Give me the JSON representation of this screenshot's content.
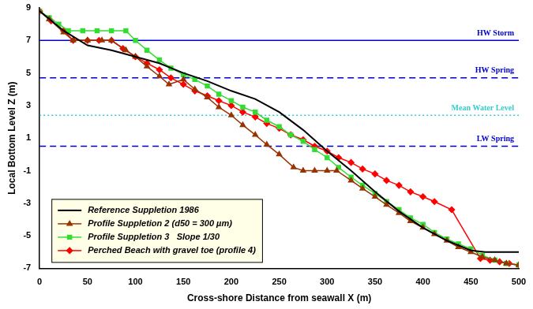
{
  "chart_data": {
    "type": "line",
    "x_label": "Cross-shore Distance from seawall X (m)",
    "y_label": "Local Bottom Level Z (m)",
    "xlim": [
      0,
      500
    ],
    "xticks": [
      0,
      50,
      100,
      150,
      200,
      250,
      300,
      350,
      400,
      450,
      500
    ],
    "ylim": [
      -7,
      9
    ],
    "yticks": [
      -7,
      -5,
      -3,
      -1,
      1,
      3,
      5,
      7,
      9
    ],
    "grid": false,
    "legend": "lower left",
    "annotations": [
      {
        "label": "HW Storm",
        "y": 7,
        "color": "#0000cc",
        "line_style": "solid"
      },
      {
        "label": "HW Spring",
        "y": 4.7,
        "color": "#0000cc",
        "line_style": "dashed"
      },
      {
        "label": "Mean Water Level",
        "y": 2.4,
        "color": "#33cccc",
        "line_style": "dotted"
      },
      {
        "label": "LW Spring",
        "y": 0.5,
        "color": "#0000cc",
        "line_style": "dashed"
      }
    ],
    "series": [
      {
        "name": "Reference Suppletion 1986",
        "color": "#000000",
        "marker": "none",
        "line_style": "solid",
        "x": [
          0,
          25,
          50,
          75,
          100,
          125,
          150,
          175,
          200,
          225,
          250,
          275,
          300,
          325,
          350,
          375,
          400,
          425,
          450,
          465,
          475,
          500
        ],
        "values": [
          8.8,
          7.6,
          6.7,
          6.4,
          6.0,
          5.6,
          5.0,
          4.5,
          3.9,
          3.4,
          2.6,
          1.5,
          0.2,
          -1.0,
          -2.3,
          -3.5,
          -4.5,
          -5.3,
          -5.9,
          -6.0,
          -6.0,
          -6.0
        ]
      },
      {
        "name": "Profile Suppletion 2 (d50 = 300 µm)",
        "color": "#993300",
        "marker": "triangle",
        "line_style": "solid",
        "x": [
          0,
          10,
          25,
          35,
          50,
          65,
          75,
          90,
          100,
          112,
          125,
          135,
          150,
          162,
          175,
          187,
          200,
          212,
          225,
          237,
          250,
          265,
          275,
          287,
          300,
          310,
          325,
          337,
          350,
          362,
          375,
          387,
          400,
          412,
          425,
          437,
          450,
          462,
          475,
          487,
          500
        ],
        "values": [
          8.8,
          8.3,
          7.5,
          7.0,
          7.0,
          7.0,
          7.0,
          6.4,
          6.0,
          5.4,
          4.8,
          4.3,
          4.6,
          4.0,
          3.5,
          2.9,
          2.4,
          1.8,
          1.2,
          0.6,
          0.0,
          -0.8,
          -1.0,
          -1.0,
          -1.0,
          -1.0,
          -1.6,
          -2.1,
          -2.6,
          -3.1,
          -3.6,
          -4.1,
          -4.5,
          -4.9,
          -5.3,
          -5.7,
          -6.0,
          -6.3,
          -6.5,
          -6.7,
          -6.8
        ]
      },
      {
        "name": "Profile Suppletion 3   Slope 1/30",
        "color": "#33dd33",
        "marker": "square",
        "line_style": "solid",
        "x": [
          0,
          10,
          20,
          30,
          45,
          60,
          75,
          90,
          100,
          112,
          125,
          137,
          150,
          162,
          175,
          187,
          200,
          212,
          225,
          237,
          250,
          262,
          275,
          287,
          300,
          312,
          325,
          337,
          350,
          362,
          375,
          387,
          400,
          412,
          425,
          437,
          450,
          462,
          475,
          487,
          500
        ],
        "values": [
          8.8,
          8.4,
          8.0,
          7.6,
          7.6,
          7.6,
          7.6,
          7.6,
          7.0,
          6.4,
          5.8,
          5.3,
          4.9,
          4.6,
          4.2,
          3.7,
          3.3,
          2.9,
          2.6,
          2.1,
          1.7,
          1.2,
          0.8,
          0.3,
          -0.2,
          -0.8,
          -1.4,
          -1.9,
          -2.4,
          -2.9,
          -3.4,
          -3.9,
          -4.3,
          -4.8,
          -5.2,
          -5.5,
          -5.8,
          -6.2,
          -6.5,
          -6.7,
          -6.8
        ]
      },
      {
        "name": "Perched Beach with gravel toe (profile 4)",
        "color": "#ff0000",
        "marker": "diamond",
        "line_style": "solid",
        "x": [
          0,
          12,
          25,
          35,
          50,
          62,
          75,
          87,
          100,
          112,
          125,
          137,
          150,
          162,
          175,
          187,
          200,
          212,
          225,
          237,
          250,
          262,
          275,
          287,
          300,
          312,
          325,
          337,
          350,
          362,
          375,
          387,
          400,
          412,
          430,
          460,
          470,
          480,
          490,
          500
        ],
        "values": [
          8.8,
          8.2,
          7.6,
          7.0,
          7.0,
          7.0,
          7.0,
          6.5,
          6.0,
          5.6,
          5.2,
          4.7,
          4.3,
          3.9,
          3.6,
          3.3,
          3.0,
          2.6,
          2.3,
          1.9,
          1.6,
          1.2,
          0.9,
          0.5,
          0.2,
          -0.2,
          -0.5,
          -0.9,
          -1.2,
          -1.6,
          -1.9,
          -2.3,
          -2.6,
          -2.9,
          -3.4,
          -6.4,
          -6.5,
          -6.6,
          -6.7,
          -6.8
        ]
      }
    ]
  }
}
